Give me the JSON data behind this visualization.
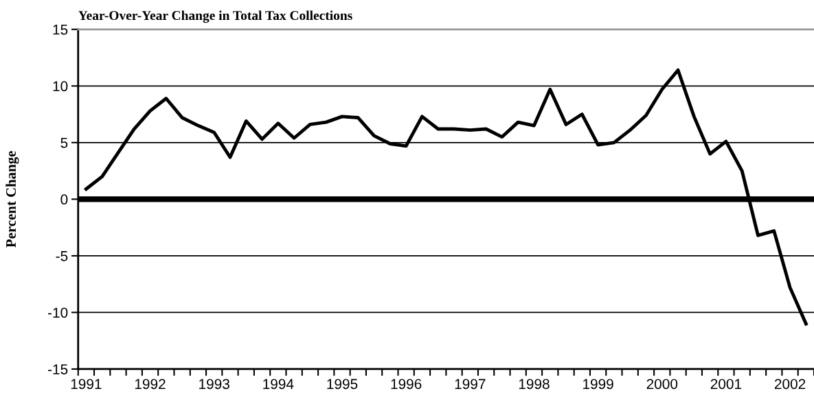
{
  "chart_data": {
    "type": "line",
    "title": "Year-Over-Year Change in Total Tax Collections",
    "ylabel": "Percent Change",
    "categories": [
      "1991",
      null,
      null,
      null,
      "1992",
      null,
      null,
      null,
      "1993",
      null,
      null,
      null,
      "1994",
      null,
      null,
      null,
      "1995",
      null,
      null,
      null,
      "1996",
      null,
      null,
      null,
      "1997",
      null,
      null,
      null,
      "1998",
      null,
      null,
      null,
      "1999",
      null,
      null,
      null,
      "2000",
      null,
      null,
      null,
      "2001",
      null,
      null,
      null,
      "2002",
      null
    ],
    "series": [
      {
        "color": "#000000",
        "values": [
          0.9,
          2.0,
          4.1,
          6.2,
          7.8,
          8.9,
          7.2,
          6.5,
          5.9,
          3.7,
          6.9,
          5.3,
          6.7,
          5.4,
          6.6,
          6.8,
          7.3,
          7.2,
          5.6,
          4.9,
          4.7,
          7.3,
          6.2,
          6.2,
          6.1,
          6.2,
          5.5,
          6.8,
          6.5,
          9.7,
          6.6,
          7.5,
          4.8,
          5.0,
          6.1,
          7.4,
          9.7,
          11.4,
          7.3,
          4.0,
          5.1,
          2.5,
          -3.2,
          -2.8,
          -7.8,
          -11.0
        ]
      }
    ],
    "ylim": [
      -15,
      15
    ],
    "yticks": [
      -15,
      -10,
      -5,
      0,
      5,
      10,
      15
    ],
    "grid": "y",
    "marker": "none",
    "line_style": "solid",
    "ref_lines": [
      {
        "axis": "y",
        "value": 0,
        "color": "#000000"
      }
    ]
  }
}
